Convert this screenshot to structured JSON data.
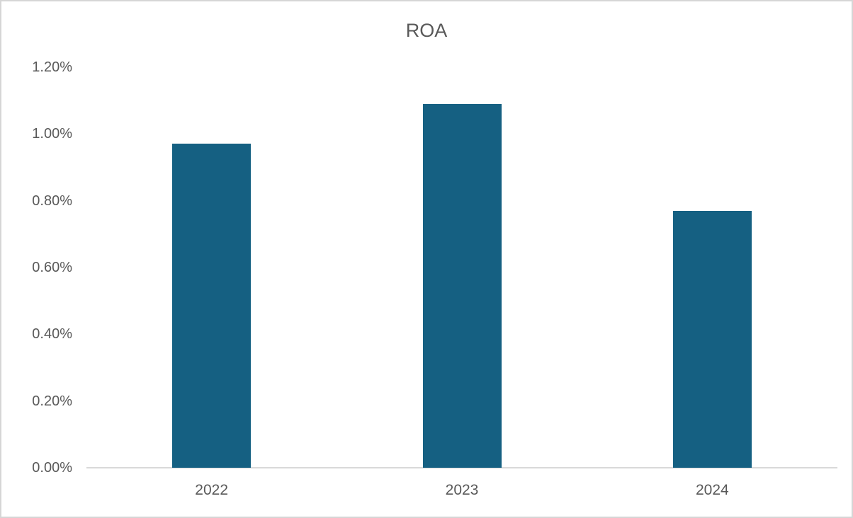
{
  "chart_data": {
    "type": "bar",
    "title": "ROA",
    "categories": [
      "2022",
      "2023",
      "2024"
    ],
    "values": [
      0.97,
      1.09,
      0.77
    ],
    "value_unit": "%",
    "xlabel": "",
    "ylabel": "",
    "ylim": [
      0,
      1.2
    ],
    "ytick_values": [
      0,
      0.2,
      0.4,
      0.6,
      0.8,
      1.0,
      1.2
    ],
    "ytick_labels": [
      "0.00%",
      "0.20%",
      "0.40%",
      "0.60%",
      "0.80%",
      "1.00%",
      "1.20%"
    ],
    "grid": "off",
    "legend": "none",
    "colors": {
      "bar": "#156082",
      "label_text": "#595959",
      "axis_line": "#d9d9d9",
      "frame_border": "#d6d6d6",
      "background": "#ffffff"
    }
  }
}
